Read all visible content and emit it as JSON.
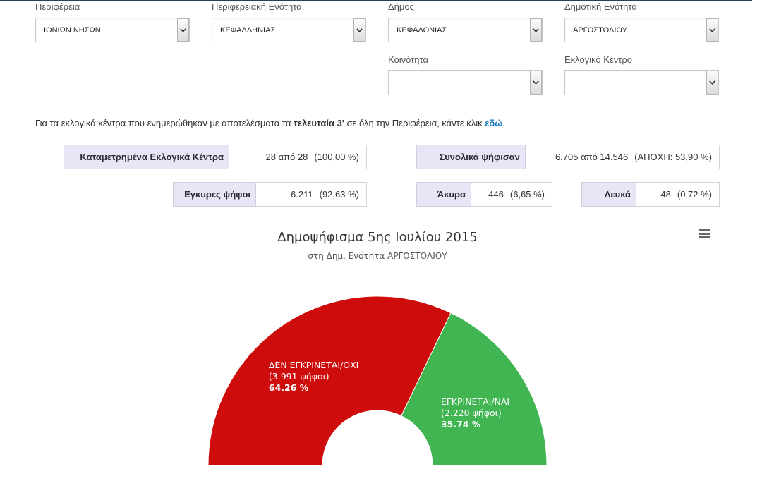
{
  "filters": {
    "region": {
      "label": "Περιφέρεια",
      "value": "ΙΟΝΙΩΝ ΝΗΣΩΝ"
    },
    "regional_unit": {
      "label": "Περιφερειακή Ενότητα",
      "value": "ΚΕΦΑΛΛΗΝΙΑΣ"
    },
    "municipality": {
      "label": "Δήμος",
      "value": "ΚΕΦΑΛΟΝΙΑΣ"
    },
    "municipal_unit": {
      "label": "Δημοτική Ενότητα",
      "value": "ΑΡΓΟΣΤΟΛΙΟΥ"
    },
    "community": {
      "label": "Κοινότητα",
      "value": ""
    },
    "polling_center": {
      "label": "Εκλογικό Κέντρο",
      "value": ""
    }
  },
  "notice": {
    "text_1": "Για τα εκλογικά κέντρα που ενημερώθηκαν με αποτελέσματα τα",
    "emphasis": "τελευταία 3'",
    "text_2": "σε όλη την Περιφέρεια, κάντε κλικ",
    "link": "εδώ",
    "text_3": "."
  },
  "stats": {
    "counted_centers": {
      "label": "Καταμετρημένα Εκλογικά Κέντρα",
      "value": "28 από 28",
      "extra": "(100,00 %)"
    },
    "total_voted": {
      "label": "Συνολικά ψήφισαν",
      "value": "6.705 από 14.546",
      "extra": "(ΑΠΟΧΗ: 53,90 %)"
    },
    "valid": {
      "label": "Εγκυρες ψήφοι",
      "value": "6.211",
      "extra": "(92,63 %)"
    },
    "invalid": {
      "label": "Άκυρα",
      "value": "446",
      "extra": "(6,65 %)"
    },
    "blank": {
      "label": "Λευκά",
      "value": "48",
      "extra": "(0,72 %)"
    }
  },
  "icons": {
    "select_arrow": "chevron-down-icon",
    "chart_menu": "hamburger-menu-icon"
  },
  "colors": {
    "header_bar": "#23405e",
    "link": "#1e7cc0",
    "stat_label_bg": "#e6e6f7"
  },
  "chart_data": {
    "type": "pie",
    "shape": "semi-donut",
    "title": "Δημοψήφισμα 5ης Ιουλίου 2015",
    "subtitle": "στη Δημ. Ενότητα ΑΡΓΟΣΤΟΛΙΟΥ",
    "legend": "none",
    "slices": [
      {
        "name": "ΔΕΝ ΕΓΚΡΙΝΕΤΑΙ/ΟΧΙ",
        "value": 3991,
        "votes_label": "(3.991 ψήφοι)",
        "percent_label": "64.26 %",
        "color": "#cf0c0c"
      },
      {
        "name": "ΕΓΚΡΙΝΕΤΑΙ/ΝΑΙ",
        "value": 2220,
        "votes_label": "(2.220 ψήφοι)",
        "percent_label": "35.74 %",
        "color": "#40b552"
      }
    ]
  }
}
